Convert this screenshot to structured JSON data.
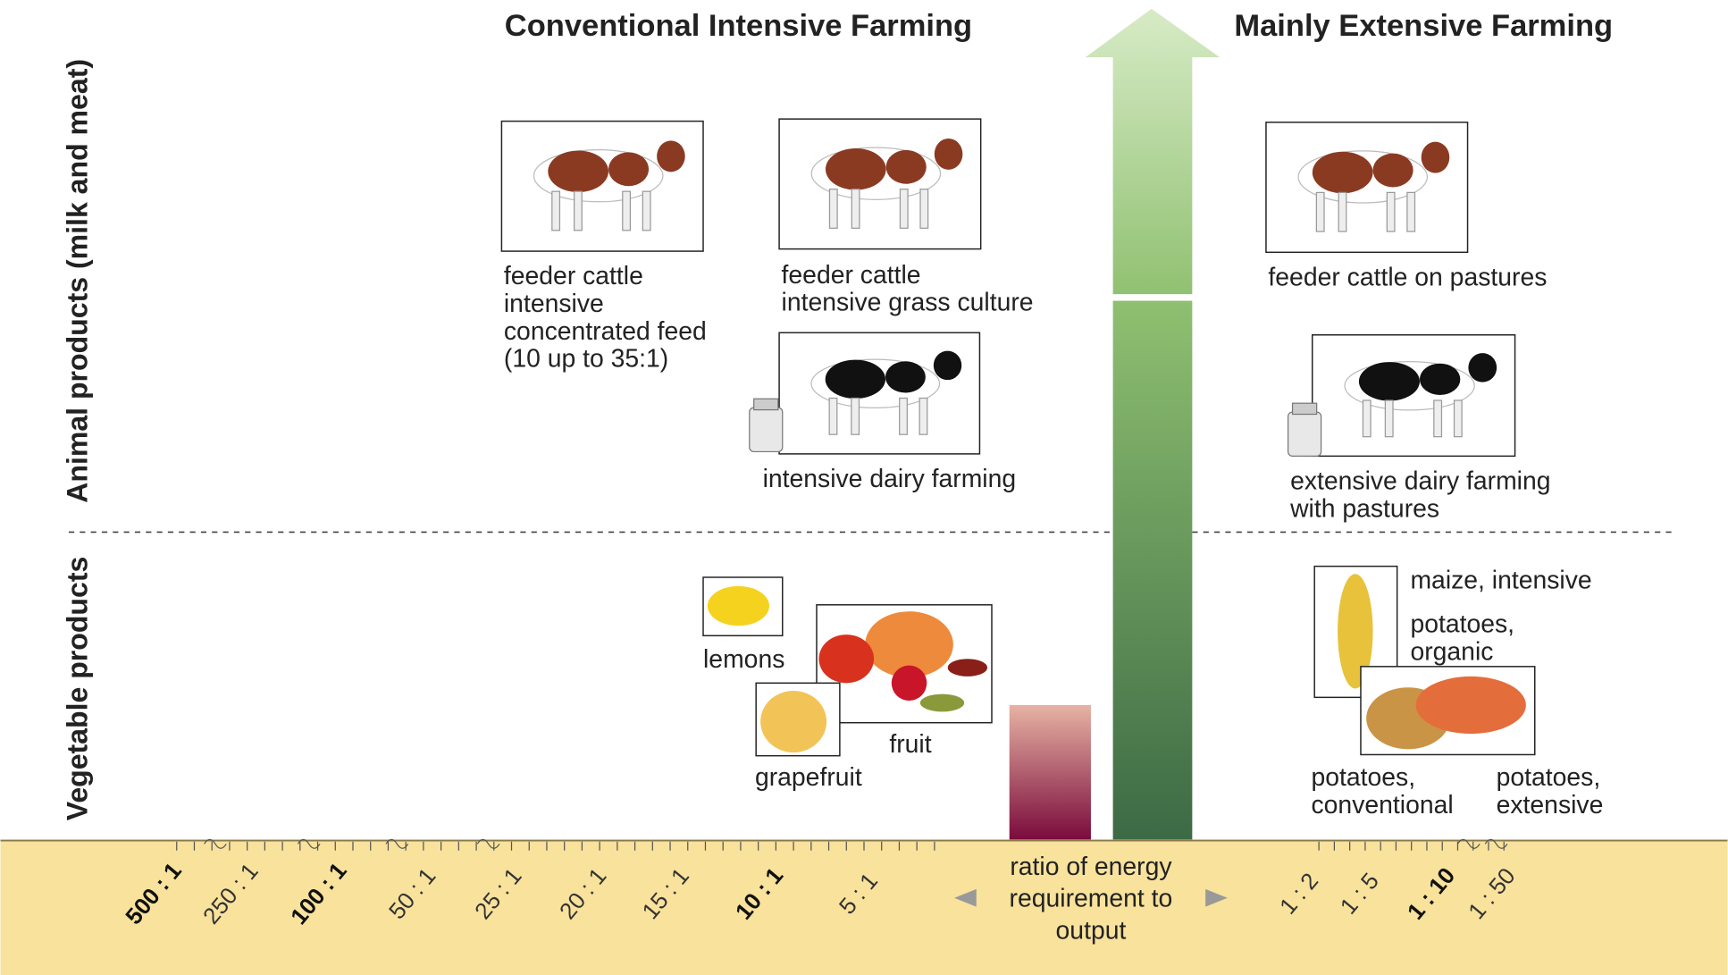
{
  "headings": [
    "Conventional Intensive Farming",
    "Mainly Extensive Farming"
  ],
  "side_labels": [
    "Animal products (milk and meat)",
    "Vegetable products"
  ],
  "items": [
    {
      "lines": [
        "feeder cattle",
        "intensive",
        "concentrated feed",
        "(10 up to 35:1)"
      ]
    },
    {
      "lines": [
        "feeder cattle",
        "intensive grass culture"
      ]
    },
    {
      "lines": [
        "feeder cattle on pastures"
      ]
    },
    {
      "lines": [
        "intensive dairy farming"
      ]
    },
    {
      "lines": [
        "extensive dairy farming",
        "with pastures"
      ]
    },
    {
      "lines": [
        "lemons"
      ]
    },
    {
      "lines": [
        "fruit"
      ]
    },
    {
      "lines": [
        "grapefruit"
      ]
    },
    {
      "lines": [
        "maize, intensive"
      ]
    },
    {
      "lines": [
        "potatoes,",
        "organic"
      ]
    },
    {
      "lines": [
        "potatoes,",
        "conventional"
      ]
    },
    {
      "lines": [
        "potatoes,",
        "extensive"
      ]
    }
  ],
  "axis": {
    "ticks": [
      "500 : 1",
      "250 : 1",
      "100 : 1",
      "50 : 1",
      "25 : 1",
      "20 : 1",
      "15 : 1",
      "10 : 1",
      "5 : 1",
      "1 : 2",
      "1 : 5",
      "1 : 10",
      "1 : 50"
    ],
    "caption": [
      "ratio of energy",
      "requirement to",
      "output"
    ]
  }
}
